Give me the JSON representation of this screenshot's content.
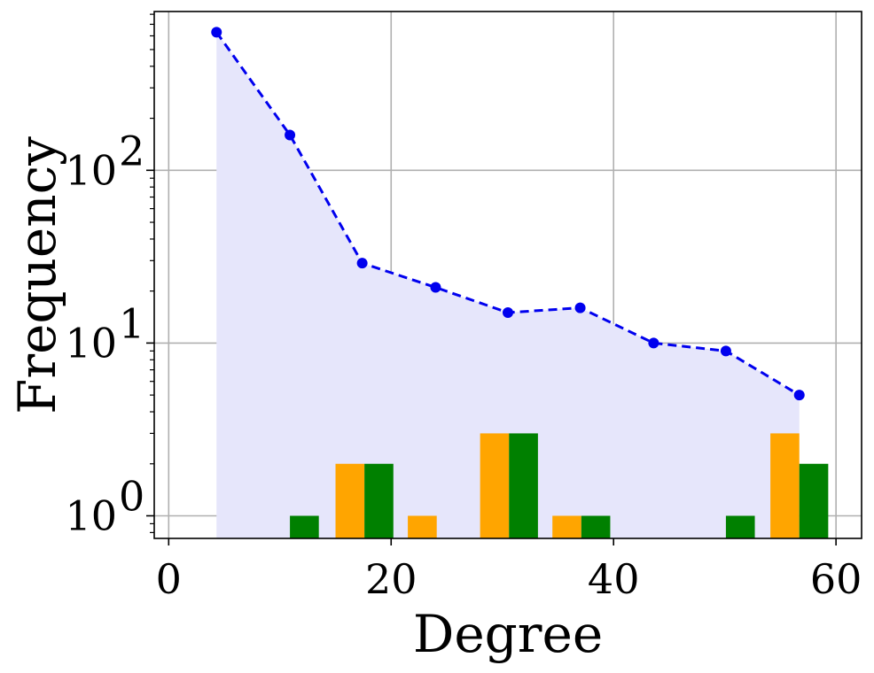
{
  "chart_data": {
    "type": "line",
    "xlabel": "Degree",
    "ylabel": "Frequency",
    "xlim": [
      -1.3,
      62.3
    ],
    "ylim": [
      0.74,
      830
    ],
    "y_scale": "log",
    "grid": true,
    "x_ticks": [
      0,
      20,
      40,
      60
    ],
    "x_tick_labels": [
      "0",
      "20",
      "40",
      "60"
    ],
    "y_ticks": [
      1,
      10,
      100
    ],
    "y_tick_labels": [
      {
        "base": "10",
        "exp": "0"
      },
      {
        "base": "10",
        "exp": "1"
      },
      {
        "base": "10",
        "exp": "2"
      }
    ],
    "line_series": {
      "color": "#0000ee",
      "fill_color": "#e6e6fb",
      "style": "dashed",
      "x": [
        4.3,
        10.9,
        17.4,
        24.0,
        30.5,
        37.0,
        43.6,
        50.1,
        56.7
      ],
      "values": [
        630,
        160,
        29,
        21,
        15,
        16,
        10,
        9,
        5
      ]
    },
    "bar_series": [
      {
        "color": "#ffa500",
        "bars": [
          {
            "x0": 15.0,
            "x1": 17.6,
            "value": 2
          },
          {
            "x0": 21.5,
            "x1": 24.1,
            "value": 1
          },
          {
            "x0": 28.0,
            "x1": 30.6,
            "value": 3
          },
          {
            "x0": 34.5,
            "x1": 37.1,
            "value": 1
          },
          {
            "x0": 54.1,
            "x1": 56.7,
            "value": 3
          }
        ]
      },
      {
        "color": "#008000",
        "bars": [
          {
            "x0": 10.9,
            "x1": 13.5,
            "value": 1
          },
          {
            "x0": 17.6,
            "x1": 20.2,
            "value": 2
          },
          {
            "x0": 30.6,
            "x1": 33.2,
            "value": 3
          },
          {
            "x0": 37.1,
            "x1": 39.7,
            "value": 1
          },
          {
            "x0": 50.1,
            "x1": 52.7,
            "value": 1
          },
          {
            "x0": 56.7,
            "x1": 59.3,
            "value": 2
          }
        ]
      }
    ]
  }
}
